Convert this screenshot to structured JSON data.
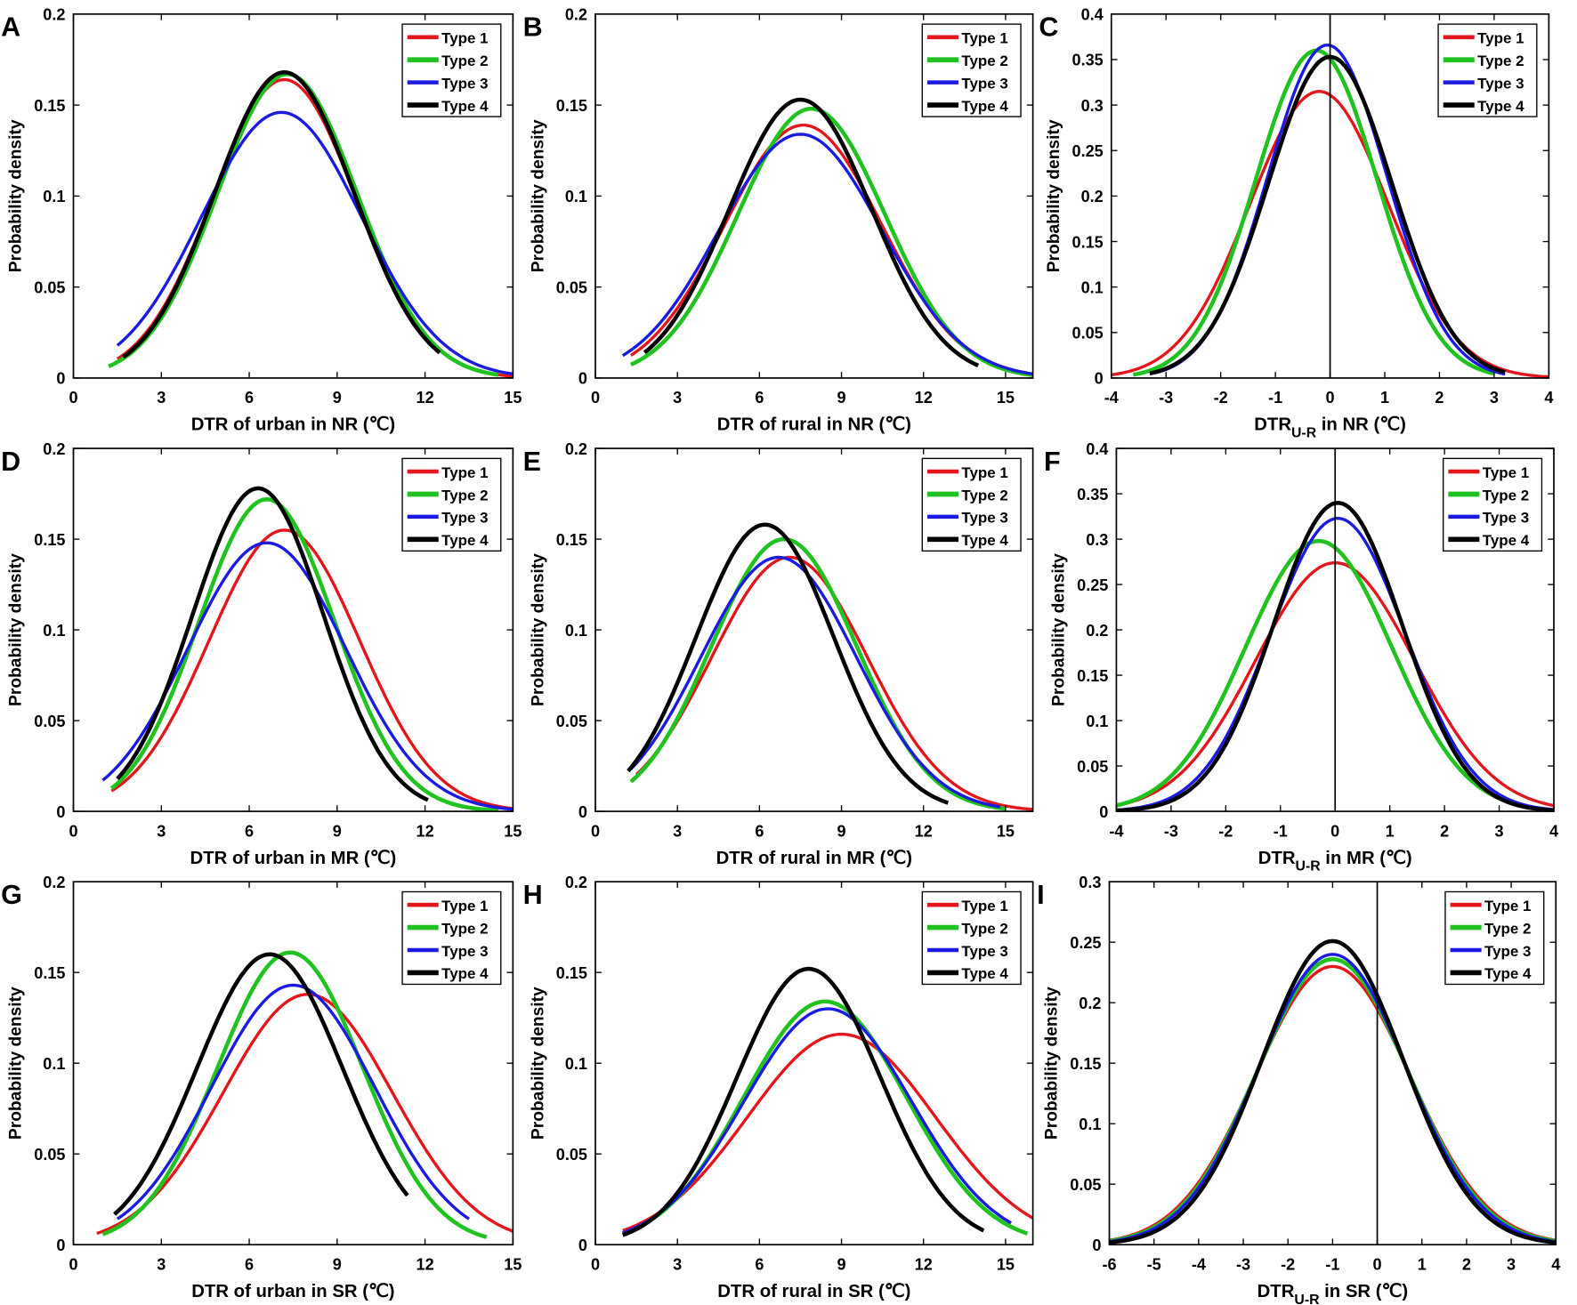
{
  "colors": {
    "Type 1": "#e3161c",
    "Type 2": "#1fc21f",
    "Type 3": "#1a1ae0",
    "Type 4": "#000000"
  },
  "chart_data": [
    {
      "panel": "A",
      "type": "line",
      "ylabel": "Probability density",
      "xlabel": {
        "main": "DTR of urban in NR (℃)",
        "sub": "",
        "rest": ""
      },
      "xlim": [
        0,
        15
      ],
      "ylim": [
        0,
        0.2
      ],
      "xticks": [
        0,
        3,
        6,
        9,
        12,
        15
      ],
      "yticks": [
        0,
        0.05,
        0.1,
        0.15,
        0.2
      ],
      "ytick_labels": [
        "0",
        "0.05",
        "0.1",
        "0.15",
        "0.2"
      ],
      "vline": null,
      "legend": "top-right",
      "series": [
        {
          "name": "Type 1",
          "mean": 7.2,
          "peak": 0.164,
          "x": [
            1.5,
            15
          ]
        },
        {
          "name": "Type 2",
          "mean": 7.3,
          "peak": 0.167,
          "x": [
            1.2,
            14.5
          ]
        },
        {
          "name": "Type 3",
          "mean": 7.1,
          "peak": 0.146,
          "x": [
            1.5,
            15
          ]
        },
        {
          "name": "Type 4",
          "mean": 7.2,
          "peak": 0.168,
          "x": [
            1.7,
            12.5
          ]
        }
      ]
    },
    {
      "panel": "B",
      "type": "line",
      "ylabel": "Probability density",
      "xlabel": {
        "main": "DTR of rural in NR (℃)",
        "sub": "",
        "rest": ""
      },
      "xlim": [
        0,
        16
      ],
      "ylim": [
        0,
        0.2
      ],
      "xticks": [
        0,
        3,
        6,
        9,
        12,
        15
      ],
      "yticks": [
        0,
        0.05,
        0.1,
        0.15,
        0.2
      ],
      "ytick_labels": [
        "0",
        "0.05",
        "0.1",
        "0.15",
        "0.2"
      ],
      "vline": null,
      "legend": "top-right",
      "series": [
        {
          "name": "Type 1",
          "mean": 7.6,
          "peak": 0.139,
          "x": [
            1.3,
            16
          ]
        },
        {
          "name": "Type 2",
          "mean": 7.9,
          "peak": 0.148,
          "x": [
            1.3,
            16
          ]
        },
        {
          "name": "Type 3",
          "mean": 7.5,
          "peak": 0.134,
          "x": [
            1.0,
            16
          ]
        },
        {
          "name": "Type 4",
          "mean": 7.5,
          "peak": 0.153,
          "x": [
            1.8,
            14
          ]
        }
      ]
    },
    {
      "panel": "C",
      "type": "line",
      "ylabel": "Probability density",
      "xlabel": {
        "main": "DTR",
        "sub": "U-R",
        "rest": " in NR (℃)"
      },
      "xlim": [
        -4,
        4
      ],
      "ylim": [
        0,
        0.4
      ],
      "xticks": [
        -4,
        -3,
        -2,
        -1,
        0,
        1,
        2,
        3,
        4
      ],
      "yticks": [
        0,
        0.05,
        0.1,
        0.15,
        0.2,
        0.25,
        0.3,
        0.35,
        0.4
      ],
      "ytick_labels": [
        "0",
        "0.05",
        "0.1",
        "0.15",
        "0.2",
        "0.25",
        "0.3",
        "0.35",
        "0.4"
      ],
      "vline": 0,
      "legend": "top-right",
      "series": [
        {
          "name": "Type 1",
          "mean": -0.2,
          "peak": 0.315,
          "x": [
            -4,
            4
          ]
        },
        {
          "name": "Type 2",
          "mean": -0.25,
          "peak": 0.36,
          "x": [
            -3.6,
            3.0
          ]
        },
        {
          "name": "Type 3",
          "mean": -0.05,
          "peak": 0.366,
          "x": [
            -3.2,
            3.2
          ]
        },
        {
          "name": "Type 4",
          "mean": 0.0,
          "peak": 0.353,
          "x": [
            -3.3,
            3.2
          ]
        }
      ]
    },
    {
      "panel": "D",
      "type": "line",
      "ylabel": "Probability density",
      "xlabel": {
        "main": "DTR of urban in MR (℃)",
        "sub": "",
        "rest": ""
      },
      "xlim": [
        0,
        15
      ],
      "ylim": [
        0,
        0.2
      ],
      "xticks": [
        0,
        3,
        6,
        9,
        12,
        15
      ],
      "yticks": [
        0,
        0.05,
        0.1,
        0.15,
        0.2
      ],
      "ytick_labels": [
        "0",
        "0.05",
        "0.1",
        "0.15",
        "0.2"
      ],
      "vline": null,
      "legend": "top-right",
      "series": [
        {
          "name": "Type 1",
          "mean": 7.2,
          "peak": 0.155,
          "x": [
            1.3,
            15
          ]
        },
        {
          "name": "Type 2",
          "mean": 6.6,
          "peak": 0.172,
          "x": [
            1.3,
            14.5
          ]
        },
        {
          "name": "Type 3",
          "mean": 6.6,
          "peak": 0.148,
          "x": [
            1.0,
            15
          ]
        },
        {
          "name": "Type 4",
          "mean": 6.3,
          "peak": 0.178,
          "x": [
            1.5,
            12.1
          ]
        }
      ]
    },
    {
      "panel": "E",
      "type": "line",
      "ylabel": "Probability density",
      "xlabel": {
        "main": "DTR of rural in MR (℃)",
        "sub": "",
        "rest": ""
      },
      "xlim": [
        0,
        16
      ],
      "ylim": [
        0,
        0.2
      ],
      "xticks": [
        0,
        3,
        6,
        9,
        12,
        15
      ],
      "yticks": [
        0,
        0.05,
        0.1,
        0.15,
        0.2
      ],
      "ytick_labels": [
        "0",
        "0.05",
        "0.1",
        "0.15",
        "0.2"
      ],
      "vline": null,
      "legend": "top-right",
      "series": [
        {
          "name": "Type 1",
          "mean": 7.1,
          "peak": 0.14,
          "x": [
            1.5,
            16
          ]
        },
        {
          "name": "Type 2",
          "mean": 6.9,
          "peak": 0.15,
          "x": [
            1.3,
            15
          ]
        },
        {
          "name": "Type 3",
          "mean": 6.7,
          "peak": 0.14,
          "x": [
            1.3,
            14.8
          ]
        },
        {
          "name": "Type 4",
          "mean": 6.2,
          "peak": 0.158,
          "x": [
            1.2,
            12.9
          ]
        }
      ]
    },
    {
      "panel": "F",
      "type": "line",
      "ylabel": "Probability density",
      "xlabel": {
        "main": "DTR",
        "sub": "U-R",
        "rest": " in MR (℃)"
      },
      "xlim": [
        -4,
        4
      ],
      "ylim": [
        0,
        0.4
      ],
      "xticks": [
        -4,
        -3,
        -2,
        -1,
        0,
        1,
        2,
        3,
        4
      ],
      "yticks": [
        0,
        0.05,
        0.1,
        0.15,
        0.2,
        0.25,
        0.3,
        0.35,
        0.4
      ],
      "ytick_labels": [
        "0",
        "0.05",
        "0.1",
        "0.15",
        "0.2",
        "0.25",
        "0.3",
        "0.35",
        "0.4"
      ],
      "vline": 0,
      "legend": "top-right",
      "series": [
        {
          "name": "Type 1",
          "mean": 0.0,
          "peak": 0.274,
          "x": [
            -4,
            4
          ]
        },
        {
          "name": "Type 2",
          "mean": -0.3,
          "peak": 0.298,
          "x": [
            -4,
            3.5
          ]
        },
        {
          "name": "Type 3",
          "mean": 0.05,
          "peak": 0.323,
          "x": [
            -4,
            4
          ]
        },
        {
          "name": "Type 4",
          "mean": 0.05,
          "peak": 0.34,
          "x": [
            -4,
            4
          ]
        }
      ]
    },
    {
      "panel": "G",
      "type": "line",
      "ylabel": "Probability density",
      "xlabel": {
        "main": "DTR of urban in SR (℃)",
        "sub": "",
        "rest": ""
      },
      "xlim": [
        0,
        15
      ],
      "ylim": [
        0,
        0.2
      ],
      "xticks": [
        0,
        3,
        6,
        9,
        12,
        15
      ],
      "yticks": [
        0,
        0.05,
        0.1,
        0.15,
        0.2
      ],
      "ytick_labels": [
        "0",
        "0.05",
        "0.1",
        "0.15",
        "0.2"
      ],
      "vline": null,
      "legend": "top-right",
      "series": [
        {
          "name": "Type 1",
          "mean": 8.0,
          "peak": 0.138,
          "x": [
            0.8,
            15
          ]
        },
        {
          "name": "Type 2",
          "mean": 7.4,
          "peak": 0.161,
          "x": [
            1.0,
            14.1
          ]
        },
        {
          "name": "Type 3",
          "mean": 7.5,
          "peak": 0.143,
          "x": [
            1.5,
            13.5
          ]
        },
        {
          "name": "Type 4",
          "mean": 6.7,
          "peak": 0.16,
          "x": [
            1.4,
            11.4
          ]
        }
      ]
    },
    {
      "panel": "H",
      "type": "line",
      "ylabel": "Probability density",
      "xlabel": {
        "main": "DTR of rural in SR (℃)",
        "sub": "",
        "rest": ""
      },
      "xlim": [
        0,
        16
      ],
      "ylim": [
        0,
        0.2
      ],
      "xticks": [
        0,
        3,
        6,
        9,
        12,
        15
      ],
      "yticks": [
        0,
        0.05,
        0.1,
        0.15,
        0.2
      ],
      "ytick_labels": [
        "0",
        "0.05",
        "0.1",
        "0.15",
        "0.2"
      ],
      "vline": null,
      "legend": "top-right",
      "series": [
        {
          "name": "Type 1",
          "mean": 9.0,
          "peak": 0.116,
          "x": [
            1.0,
            16
          ]
        },
        {
          "name": "Type 2",
          "mean": 8.4,
          "peak": 0.134,
          "x": [
            1.0,
            15.8
          ]
        },
        {
          "name": "Type 3",
          "mean": 8.5,
          "peak": 0.13,
          "x": [
            1.0,
            15.2
          ]
        },
        {
          "name": "Type 4",
          "mean": 7.8,
          "peak": 0.152,
          "x": [
            1.0,
            14.2
          ]
        }
      ]
    },
    {
      "panel": "I",
      "type": "line",
      "ylabel": "Probability density",
      "xlabel": {
        "main": "DTR",
        "sub": "U-R",
        "rest": " in SR (℃)"
      },
      "xlim": [
        -6,
        4
      ],
      "ylim": [
        0,
        0.3
      ],
      "xticks": [
        -6,
        -5,
        -4,
        -3,
        -2,
        -1,
        0,
        1,
        2,
        3,
        4
      ],
      "yticks": [
        0,
        0.05,
        0.1,
        0.15,
        0.2,
        0.25,
        0.3
      ],
      "ytick_labels": [
        "0",
        "0.05",
        "0.1",
        "0.15",
        "0.2",
        "0.25",
        "0.3"
      ],
      "vline": 0,
      "legend": "top-right",
      "series": [
        {
          "name": "Type 1",
          "mean": -1.0,
          "peak": 0.23,
          "x": [
            -6,
            4
          ]
        },
        {
          "name": "Type 2",
          "mean": -1.0,
          "peak": 0.236,
          "x": [
            -6,
            4
          ]
        },
        {
          "name": "Type 3",
          "mean": -1.0,
          "peak": 0.24,
          "x": [
            -6,
            4
          ]
        },
        {
          "name": "Type 4",
          "mean": -1.0,
          "peak": 0.251,
          "x": [
            -6,
            4
          ]
        }
      ]
    }
  ]
}
